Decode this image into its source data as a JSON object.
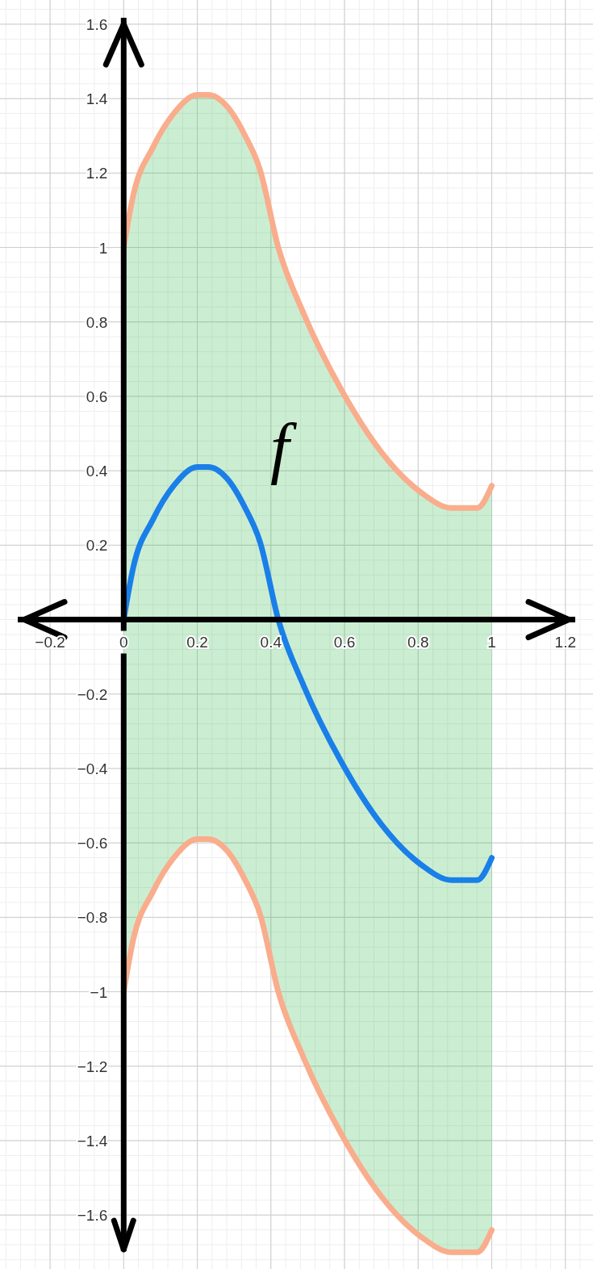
{
  "chart_data": {
    "type": "line",
    "xlim": [
      -0.336,
      1.275
    ],
    "ylim": [
      -1.745,
      1.665
    ],
    "xticks": [
      {
        "value": -0.2,
        "label": "−0.2"
      },
      {
        "value": 0,
        "label": "0"
      },
      0.2,
      0.4,
      0.6,
      0.8,
      1,
      1.2
    ],
    "yticks": [
      {
        "value": -1.6,
        "label": "−1.6"
      },
      {
        "value": -1.4,
        "label": "−1.4"
      },
      {
        "value": -1.2,
        "label": "−1.2"
      },
      {
        "value": -1,
        "label": "−1"
      },
      {
        "value": -0.8,
        "label": "−0.8"
      },
      {
        "value": -0.6,
        "label": "−0.6"
      },
      {
        "value": -0.4,
        "label": "−0.4"
      },
      {
        "value": -0.2,
        "label": "−0.2"
      },
      0.2,
      0.4,
      0.6,
      0.8,
      1,
      1.2,
      1.4,
      1.6
    ],
    "grid": true,
    "line_style": "solid",
    "x": [
      0,
      0.026,
      0.08,
      0.136,
      0.2,
      0.23,
      0.28,
      0.33,
      0.37,
      0.42,
      0.49,
      0.59,
      0.7,
      0.81,
      0.89,
      0.96,
      1
    ],
    "series": [
      {
        "name": "f",
        "color": "#1a7fe8",
        "values": [
          0,
          0.14,
          0.27,
          0.36,
          0.41,
          0.41,
          0.38,
          0.3,
          0.21,
          0,
          -0.18,
          -0.38,
          -0.55,
          -0.66,
          -0.7,
          -0.7,
          -0.64
        ],
        "lower": [
          -1,
          -0.86,
          -0.73,
          -0.64,
          -0.59,
          -0.59,
          -0.62,
          -0.7,
          -0.79,
          -1,
          -1.18,
          -1.38,
          -1.55,
          -1.66,
          -1.7,
          -1.7,
          -1.64
        ],
        "upper": [
          1,
          1.14,
          1.27,
          1.36,
          1.41,
          1.41,
          1.38,
          1.3,
          1.21,
          1,
          0.82,
          0.62,
          0.45,
          0.34,
          0.3,
          0.3,
          0.36
        ]
      },
      {
        "color": "#f9ad8c",
        "values": [
          1,
          1.14,
          1.27,
          1.36,
          1.41,
          1.41,
          1.38,
          1.3,
          1.21,
          1,
          0.82,
          0.62,
          0.45,
          0.34,
          0.3,
          0.3,
          0.36
        ]
      },
      {
        "color": "#f9ad8c",
        "values": [
          -1,
          -0.86,
          -0.73,
          -0.64,
          -0.59,
          -0.59,
          -0.62,
          -0.7,
          -0.79,
          -1,
          -1.18,
          -1.38,
          -1.55,
          -1.66,
          -1.7,
          -1.7,
          -1.64
        ]
      }
    ]
  }
}
